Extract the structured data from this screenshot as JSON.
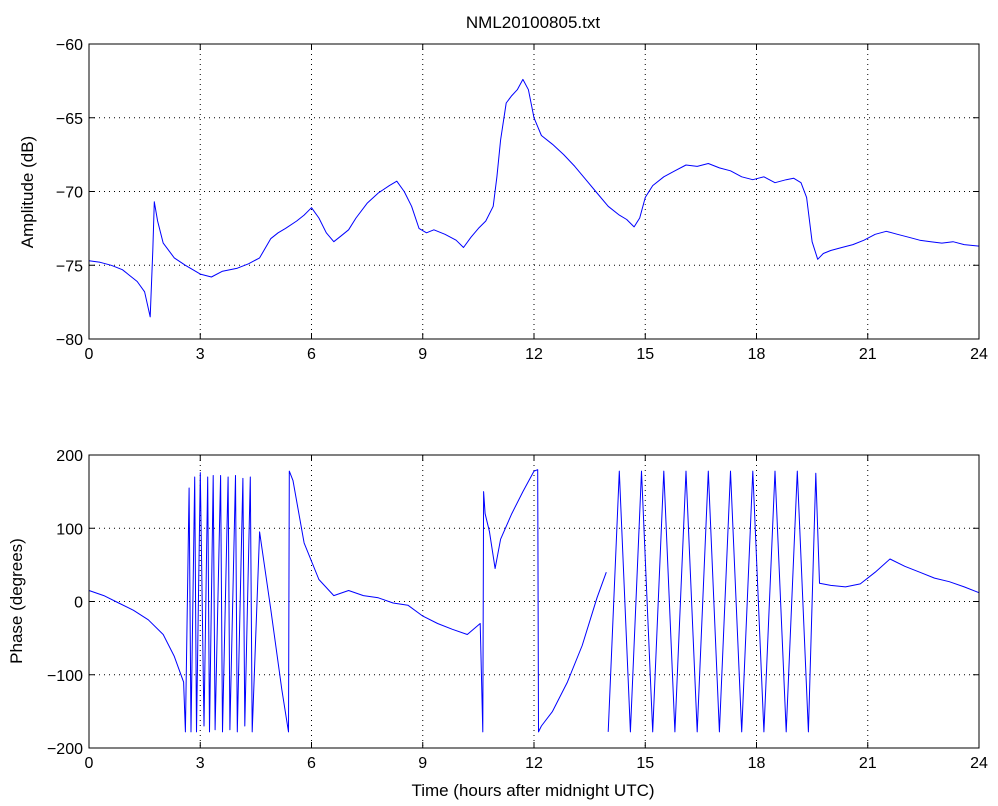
{
  "chart_data": [
    {
      "type": "line",
      "title": "NML20100805.txt",
      "xlabel": "",
      "ylabel": "Amplitude (dB)",
      "xlim": [
        0,
        24
      ],
      "ylim": [
        -80,
        -60
      ],
      "xticks": [
        0,
        3,
        6,
        9,
        12,
        15,
        18,
        21,
        24
      ],
      "yticks": [
        -80,
        -75,
        -70,
        -65,
        -60
      ],
      "grid": true,
      "color": "#0000ff",
      "series": [
        {
          "x": [
            0,
            0.3,
            0.6,
            0.9,
            1.1,
            1.3,
            1.5,
            1.65,
            1.72,
            1.76,
            1.85,
            2.0,
            2.3,
            2.6,
            3.0,
            3.3,
            3.6,
            4.0,
            4.3,
            4.6,
            4.9,
            5.1,
            5.3,
            5.6,
            5.8,
            6.0,
            6.2,
            6.4,
            6.6,
            6.8,
            7.0,
            7.2,
            7.5,
            7.8,
            8.1,
            8.3,
            8.5,
            8.7,
            8.9,
            9.1,
            9.3,
            9.6,
            9.9,
            10.1,
            10.3,
            10.5,
            10.7,
            10.9,
            11.0,
            11.1,
            11.25,
            11.4,
            11.55,
            11.7,
            11.85,
            12.0,
            12.2,
            12.5,
            12.8,
            13.1,
            13.4,
            13.7,
            14.0,
            14.3,
            14.5,
            14.7,
            14.85,
            15.0,
            15.2,
            15.5,
            15.8,
            16.1,
            16.4,
            16.7,
            17.0,
            17.3,
            17.6,
            17.9,
            18.2,
            18.5,
            18.8,
            19.0,
            19.2,
            19.35,
            19.5,
            19.65,
            19.8,
            20.0,
            20.3,
            20.6,
            20.9,
            21.2,
            21.5,
            21.8,
            22.1,
            22.4,
            22.7,
            23.0,
            23.3,
            23.6,
            24.0
          ],
          "y": [
            -74.7,
            -74.8,
            -75.0,
            -75.3,
            -75.7,
            -76.1,
            -76.8,
            -78.5,
            -74.0,
            -70.7,
            -72.0,
            -73.5,
            -74.5,
            -75.0,
            -75.6,
            -75.8,
            -75.4,
            -75.2,
            -74.9,
            -74.5,
            -73.2,
            -72.8,
            -72.5,
            -72.0,
            -71.6,
            -71.1,
            -71.8,
            -72.8,
            -73.4,
            -73.0,
            -72.6,
            -71.8,
            -70.8,
            -70.1,
            -69.6,
            -69.3,
            -70.0,
            -71.0,
            -72.5,
            -72.8,
            -72.6,
            -72.9,
            -73.3,
            -73.8,
            -73.1,
            -72.5,
            -72.0,
            -71.0,
            -69.0,
            -66.5,
            -64.0,
            -63.5,
            -63.1,
            -62.4,
            -63.1,
            -65.0,
            -66.2,
            -66.8,
            -67.5,
            -68.3,
            -69.2,
            -70.1,
            -71.0,
            -71.6,
            -71.9,
            -72.4,
            -71.8,
            -70.4,
            -69.6,
            -69.0,
            -68.6,
            -68.2,
            -68.3,
            -68.1,
            -68.4,
            -68.6,
            -69.0,
            -69.2,
            -69.0,
            -69.4,
            -69.2,
            -69.1,
            -69.4,
            -70.4,
            -73.4,
            -74.6,
            -74.2,
            -74.0,
            -73.8,
            -73.6,
            -73.3,
            -72.9,
            -72.7,
            -72.9,
            -73.1,
            -73.3,
            -73.4,
            -73.5,
            -73.4,
            -73.6,
            -73.7
          ]
        }
      ]
    },
    {
      "type": "line",
      "title": "",
      "xlabel": "Time (hours after midnight UTC)",
      "ylabel": "Phase (degrees)",
      "xlim": [
        0,
        24
      ],
      "ylim": [
        -200,
        200
      ],
      "xticks": [
        0,
        3,
        6,
        9,
        12,
        15,
        18,
        21,
        24
      ],
      "yticks": [
        -200,
        -100,
        0,
        100,
        200
      ],
      "grid": true,
      "color": "#0000ff",
      "series": [
        {
          "x": [
            0,
            0.4,
            0.8,
            1.2,
            1.6,
            2.0,
            2.3,
            2.55,
            2.6,
            2.7,
            2.75,
            2.85,
            2.9,
            3.0,
            3.1,
            3.2,
            3.25,
            3.35,
            3.4,
            3.55,
            3.6,
            3.75,
            3.8,
            3.95,
            4.0,
            4.15,
            4.2,
            4.35,
            4.4,
            4.6,
            4.9,
            5.2,
            5.38,
            5.4,
            5.5,
            5.8,
            6.2,
            6.6,
            7.0,
            7.4,
            7.8,
            8.2,
            8.6,
            9.0,
            9.4,
            9.8,
            10.2,
            10.55,
            10.62,
            10.64,
            10.68,
            10.8,
            10.95,
            11.1,
            11.4,
            11.7,
            12.0,
            12.1,
            12.12,
            12.2,
            12.5,
            12.9,
            13.3,
            13.7,
            13.95
          ],
          "y": [
            15,
            8,
            -2,
            -12,
            -25,
            -45,
            -75,
            -110,
            -178,
            155,
            -178,
            170,
            -178,
            176,
            -170,
            170,
            -178,
            172,
            -175,
            172,
            -178,
            170,
            -175,
            172,
            -178,
            168,
            -170,
            170,
            -178,
            95,
            -10,
            -120,
            -178,
            178,
            165,
            80,
            30,
            8,
            15,
            8,
            5,
            -2,
            -5,
            -20,
            -30,
            -38,
            -45,
            -30,
            -178,
            150,
            120,
            95,
            45,
            85,
            120,
            150,
            178,
            180,
            -178,
            -170,
            -150,
            -110,
            -60,
            5,
            40
          ]
        },
        {
          "x": [
            14.0,
            14.3,
            14.6,
            14.9,
            15.2,
            15.5,
            15.8,
            16.1,
            16.4,
            16.7,
            17.0,
            17.3,
            17.6,
            17.9,
            18.2,
            18.5,
            18.8,
            19.1,
            19.4,
            19.6,
            19.7,
            20.0,
            20.4,
            20.8,
            21.2,
            21.6,
            22.0,
            22.4,
            22.8,
            23.2,
            23.6,
            24.0
          ],
          "y": [
            -178,
            178,
            -178,
            178,
            -178,
            178,
            -178,
            178,
            -178,
            178,
            -178,
            178,
            -178,
            178,
            -178,
            178,
            -178,
            178,
            -178,
            175,
            25,
            22,
            20,
            24,
            40,
            58,
            48,
            40,
            32,
            27,
            20,
            12
          ]
        }
      ]
    }
  ]
}
